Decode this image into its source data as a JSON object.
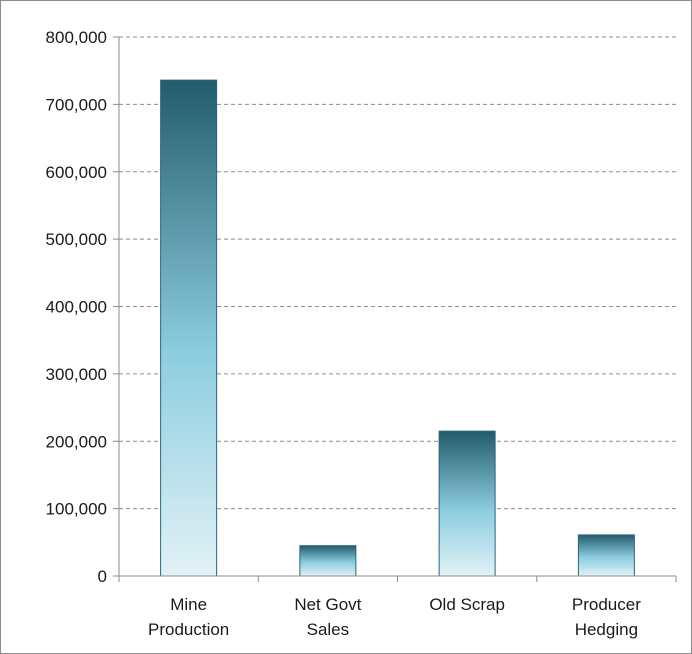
{
  "chart_data": {
    "type": "bar",
    "title": "",
    "xlabel": "",
    "ylabel": "",
    "categories": [
      [
        "Mine",
        "Production"
      ],
      [
        "Net Govt",
        "Sales"
      ],
      [
        "Old Scrap"
      ],
      [
        "Producer",
        "Hedging"
      ]
    ],
    "values": [
      736000,
      45000,
      215000,
      61000
    ],
    "ylim": [
      0,
      800000
    ],
    "yticks": [
      "0",
      "100,000",
      "200,000",
      "300,000",
      "400,000",
      "500,000",
      "600,000",
      "700,000",
      "800,000"
    ],
    "grid": true,
    "legend": "none",
    "colors": {
      "bar_top": "#225c6b",
      "bar_mid": "#8ccde0",
      "bar_bottom": "#e2f2f7",
      "bar_edge": "#2b6577",
      "grid": "#8c8c8c",
      "axis": "#8c8c8c"
    }
  }
}
